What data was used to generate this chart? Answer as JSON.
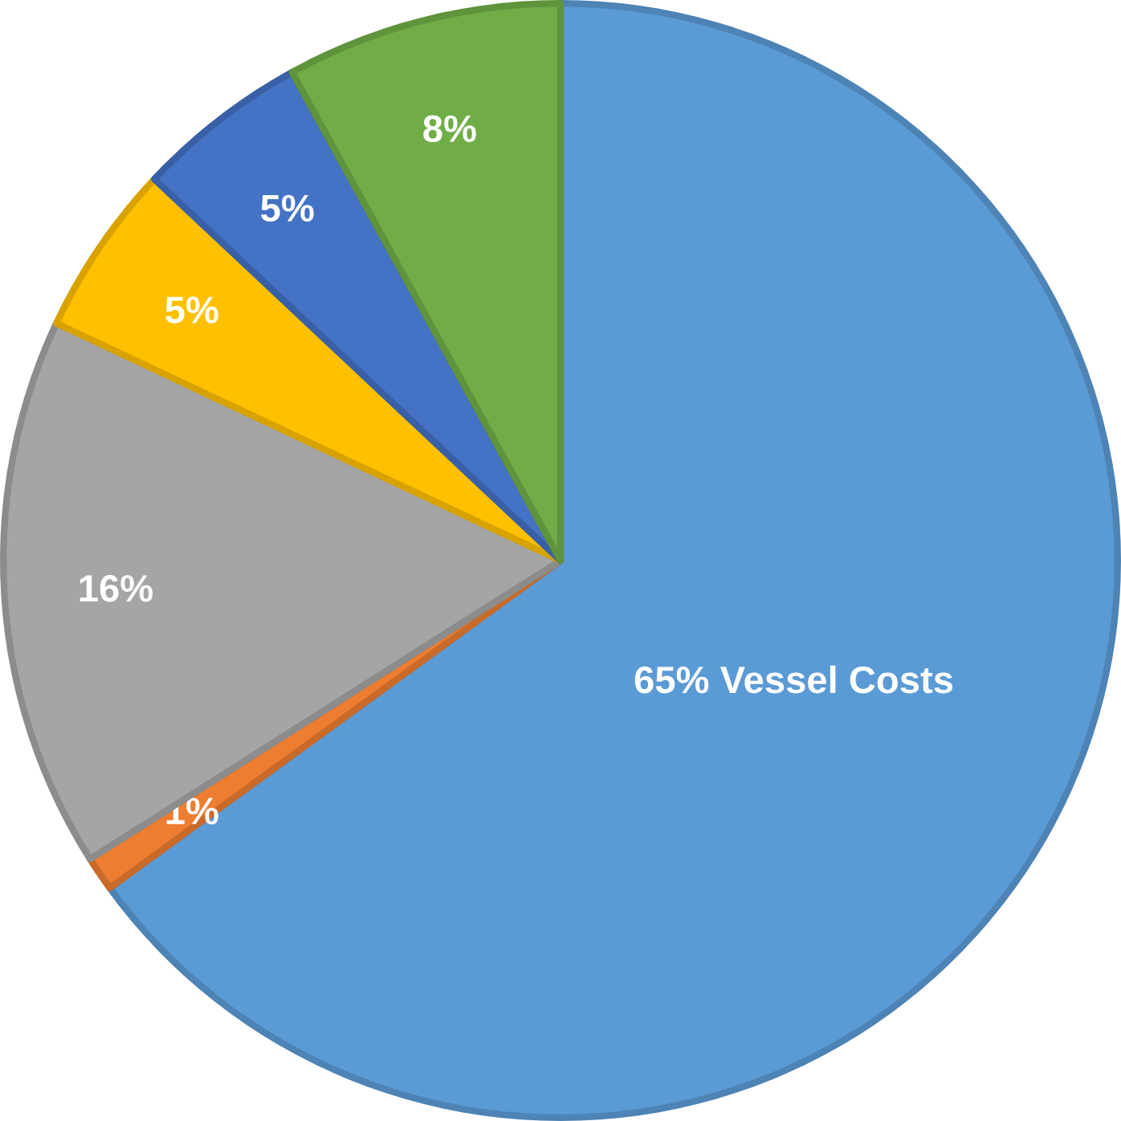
{
  "chart_data": {
    "type": "pie",
    "categories": [
      null,
      null,
      null,
      null,
      null,
      null
    ],
    "values": [
      65,
      1,
      16,
      5,
      5,
      8
    ],
    "colors": [
      "#5b9bd5",
      "#ed7d31",
      "#a5a5a5",
      "#ffc000",
      "#4472c4",
      "#70ad47"
    ],
    "value_labels": [
      "65% Vessel Costs",
      "1%",
      "16%",
      "5%",
      "5%",
      "8%"
    ]
  }
}
